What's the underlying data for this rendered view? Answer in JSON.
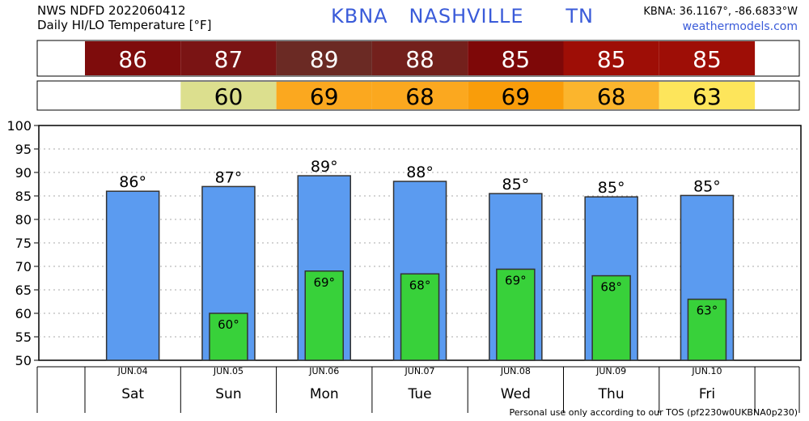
{
  "header": {
    "line1": "NWS NDFD 2022060412",
    "line2": "Daily HI/LO Temperature [°F]",
    "station": "KBNA",
    "city": "NASHVILLE",
    "state": "TN",
    "coords": "KBNA: 36.1167°, -86.6833°W",
    "site": "weathermodels.com"
  },
  "footer": "Personal use only according to our TOS (pf2230w0UKBNA0p230)",
  "colors": {
    "hi_bar": "#5b9bf0",
    "lo_bar": "#38d13a",
    "title": "#3a5bd9",
    "hi_cells": [
      "#7e0c0c",
      "#7a1414",
      "#6b2a24",
      "#73201c",
      "#7e0808",
      "#9e0e06",
      "#9e0e06"
    ],
    "lo_cells": [
      null,
      "#dcdf8e",
      "#fba81f",
      "#fba81f",
      "#f99d0a",
      "#fbb52d",
      "#fde55b"
    ]
  },
  "chart_data": {
    "type": "bar",
    "categories": [
      "Sat",
      "Sun",
      "Mon",
      "Tue",
      "Wed",
      "Thu",
      "Fri"
    ],
    "dates": [
      "JUN.04",
      "JUN.05",
      "JUN.06",
      "JUN.07",
      "JUN.08",
      "JUN.09",
      "JUN.10"
    ],
    "series": [
      {
        "values": [
          86,
          87,
          89,
          88,
          85,
          85,
          85
        ]
      },
      {
        "values": [
          null,
          60,
          69,
          68,
          69,
          68,
          63
        ]
      }
    ],
    "hi_plot": [
      86,
      87,
      89.3,
      88.1,
      85.5,
      84.8,
      85.1
    ],
    "lo_plot": [
      null,
      60,
      69,
      68.4,
      69.4,
      68,
      63
    ],
    "ylim": [
      50,
      100
    ],
    "yticks": [
      50,
      55,
      60,
      65,
      70,
      75,
      80,
      85,
      90,
      95,
      100
    ],
    "grid": true
  }
}
